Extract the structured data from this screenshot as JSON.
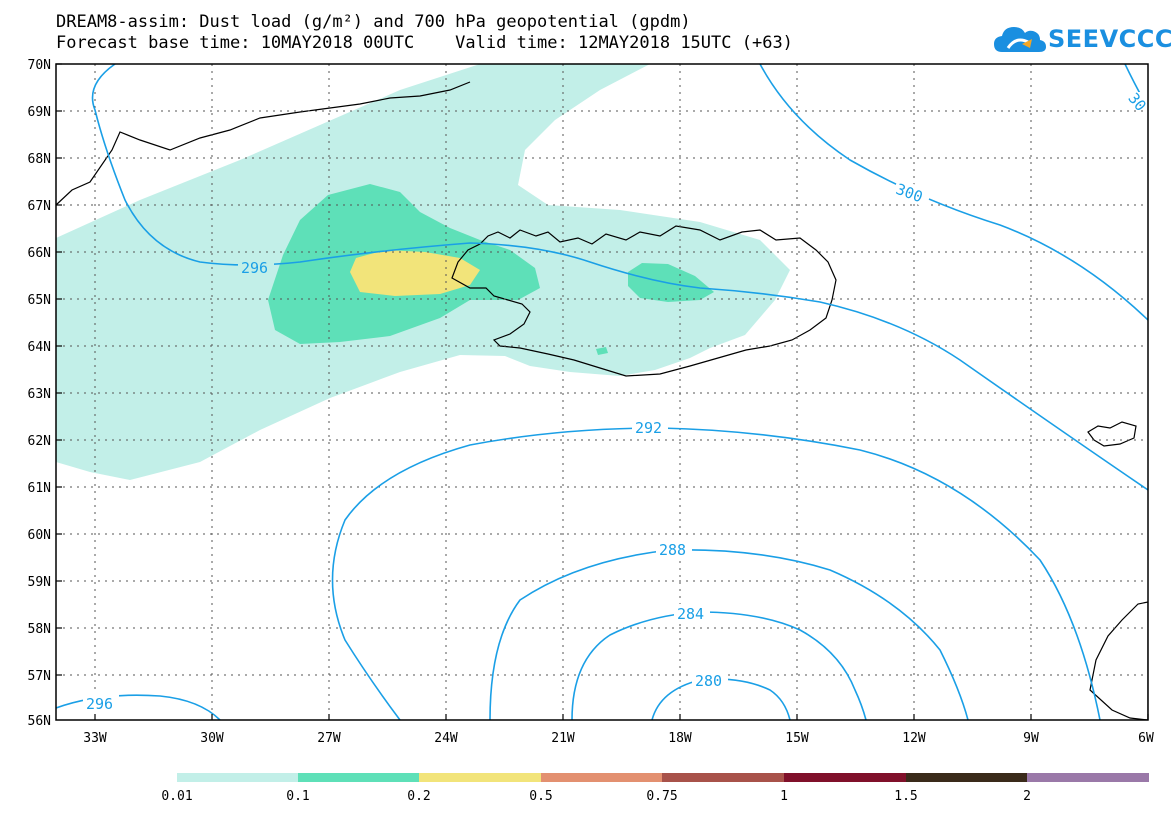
{
  "header": {
    "title_line1": "DREAM8-assim: Dust load (g/m²) and 700 hPa geopotential (gpdm)",
    "title_line2": "Forecast base time: 10MAY2018 00UTC    Valid time: 12MAY2018 15UTC (+63)"
  },
  "logo": {
    "text": "SEEVCCC",
    "icon": "cloud-icon",
    "color": "#1a8fe0"
  },
  "map": {
    "lat_labels": [
      "70N",
      "69N",
      "68N",
      "67N",
      "66N",
      "65N",
      "64N",
      "63N",
      "62N",
      "61N",
      "60N",
      "59N",
      "58N",
      "57N",
      "56N"
    ],
    "lon_labels": [
      "33W",
      "30W",
      "27W",
      "24W",
      "21W",
      "18W",
      "15W",
      "12W",
      "9W",
      "6W"
    ],
    "lat_range": [
      56,
      70
    ],
    "lon_range": [
      -34,
      -6
    ],
    "grid": "dotted",
    "contour_color": "#1a9fe6",
    "contour_labels": [
      "296",
      "300",
      "30",
      "292",
      "288",
      "284",
      "280",
      "296"
    ]
  },
  "colorbar": {
    "labels": [
      "0.01",
      "0.1",
      "0.2",
      "0.5",
      "0.75",
      "1",
      "1.5",
      "2"
    ],
    "colors": [
      "#c2efe8",
      "#5ee0b8",
      "#f2e47a",
      "#e39070",
      "#a8524a",
      "#80102a",
      "#3a2a1a",
      "#9a78a8"
    ]
  }
}
